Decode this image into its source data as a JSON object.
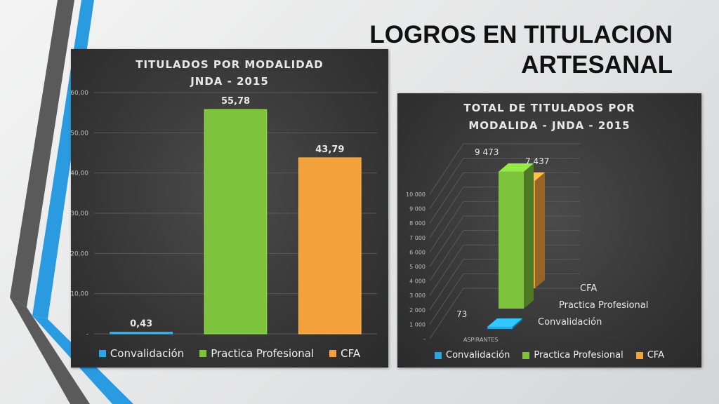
{
  "slide": {
    "title_line1": "LOGROS EN TITULACION",
    "title_line2": "ARTESANAL"
  },
  "colors": {
    "convalidacion": "#29a6e6",
    "practica": "#7dc43c",
    "cfa": "#f2a13d",
    "grid": "#595959",
    "axis_text": "#bdbdbd",
    "label_text": "#e8e8e8"
  },
  "chart_data": [
    {
      "type": "bar",
      "title": [
        "TITULADOS POR MODALIDAD",
        "JNDA - 2015"
      ],
      "categories": [
        "Convalidación",
        "Practica Profesional",
        "CFA"
      ],
      "values": [
        0.43,
        55.78,
        43.79
      ],
      "data_labels": [
        "0,43",
        "55,78",
        "43,79"
      ],
      "ylim": [
        0,
        60
      ],
      "yticks": [
        0,
        10,
        20,
        30,
        40,
        50,
        60
      ],
      "ytick_labels": [
        "-",
        "10,00",
        "20,00",
        "30,00",
        "40,00",
        "50,00",
        "60,00"
      ],
      "grid": true,
      "legend": [
        "Convalidación",
        "Practica Profesional",
        "CFA"
      ],
      "legend_position": "bottom"
    },
    {
      "type": "bar",
      "subtype": "3d-column",
      "title": [
        "TOTAL DE TITULADOS POR",
        "MODALIDA - JNDA - 2015"
      ],
      "x_category": "ASPIRANTES",
      "series": [
        {
          "name": "Convalidación",
          "values": [
            73
          ],
          "label": "73"
        },
        {
          "name": "Practica Profesional",
          "values": [
            9473
          ],
          "label": "9 473"
        },
        {
          "name": "CFA",
          "values": [
            7437
          ],
          "label": "7 437"
        }
      ],
      "depth_labels": [
        "CFA",
        "Practica Profesional",
        "Convalidación"
      ],
      "ylim": [
        0,
        10000
      ],
      "yticks": [
        0,
        1000,
        2000,
        3000,
        4000,
        5000,
        6000,
        7000,
        8000,
        9000,
        10000
      ],
      "ytick_labels": [
        "-",
        "1 000",
        "2 000",
        "3 000",
        "4 000",
        "5 000",
        "6 000",
        "7 000",
        "8 000",
        "9 000",
        "10 000"
      ],
      "grid": true,
      "legend": [
        "Convalidación",
        "Practica Profesional",
        "CFA"
      ],
      "legend_position": "bottom"
    }
  ]
}
